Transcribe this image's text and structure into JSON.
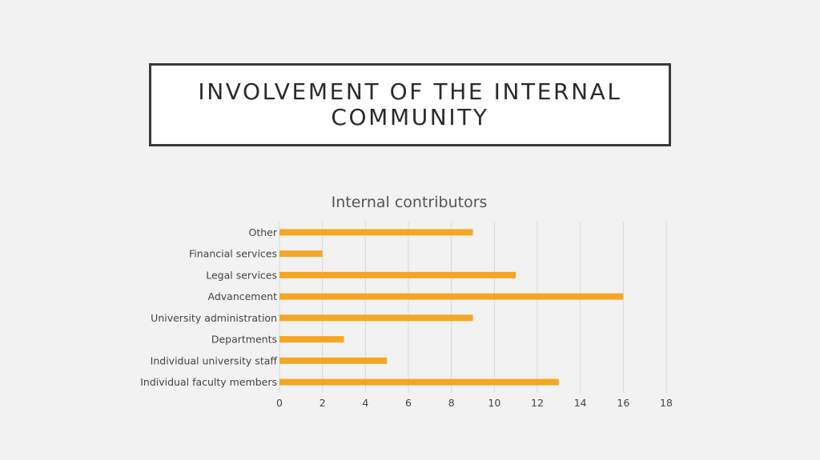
{
  "slide": {
    "title": "INVOLVEMENT OF THE INTERNAL COMMUNITY"
  },
  "colors": {
    "background": "#f2f2f2",
    "bar": "#f5a623",
    "grid": "#d9d9d9"
  },
  "chart_data": {
    "type": "bar",
    "orientation": "horizontal",
    "title": "Internal contributors",
    "xlabel": "",
    "ylabel": "",
    "categories": [
      "Individual faculty members",
      "Individual university staff",
      "Departments",
      "University administration",
      "Advancement",
      "Legal services",
      "Financial services",
      "Other"
    ],
    "values": [
      13,
      5,
      3,
      9,
      16,
      11,
      2,
      9
    ],
    "xlim": [
      0,
      18
    ],
    "xticks": [
      "0",
      "2",
      "4",
      "6",
      "8",
      "10",
      "12",
      "14",
      "16",
      "18"
    ],
    "grid": true,
    "legend": "none"
  }
}
